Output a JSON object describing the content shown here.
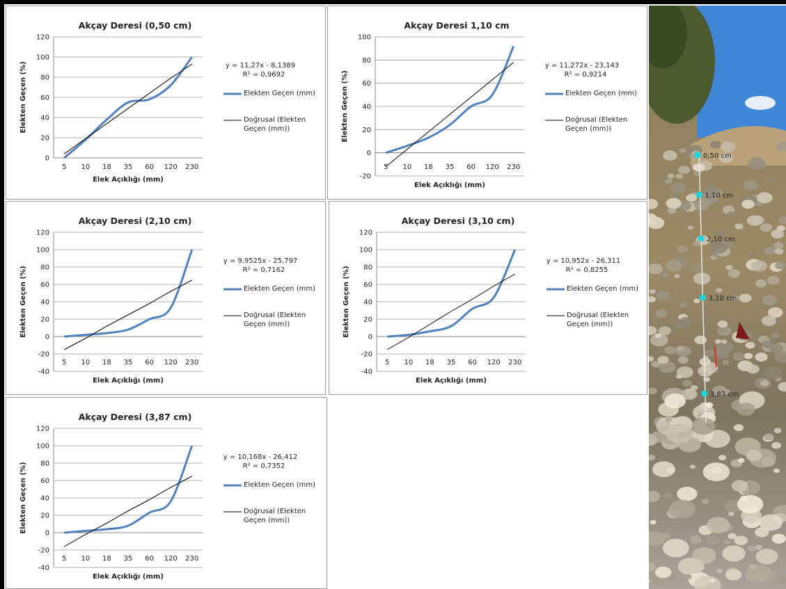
{
  "chart_data": [
    {
      "type": "line",
      "title": "Akçay Deresi (0,50 cm)",
      "x_label": "Elek Açıklığı  (mm)",
      "y_label": "Elekten Geçen (%)",
      "categories": [
        "5",
        "10",
        "18",
        "35",
        "60",
        "120",
        "230"
      ],
      "series": [
        {
          "name": "Elekten Geçen (mm)",
          "color": "#4f81bd",
          "values": [
            0,
            18,
            38,
            55,
            58,
            72,
            100
          ]
        },
        {
          "name": "Doğrusal (Elekten Geçen (mm))",
          "color": "#000000",
          "values": [
            4,
            19,
            34,
            49,
            64,
            79,
            93
          ]
        }
      ],
      "ylim": [
        0,
        120
      ],
      "yticks": [
        0,
        20,
        40,
        60,
        80,
        100,
        120
      ],
      "grid": true,
      "equation": "y = 11,27x - 8,1389",
      "r_squared": "R² = 0,9692"
    },
    {
      "type": "line",
      "title": "Akçay Deresi 1,10 cm",
      "x_label": "Elek Açıklığı  (mm)",
      "y_label": "Elekten Geçen (%)",
      "categories": [
        "5",
        "10",
        "18",
        "35",
        "60",
        "120",
        "230"
      ],
      "series": [
        {
          "name": "Elekten Geçen (mm)",
          "color": "#4f81bd",
          "values": [
            0,
            6,
            13,
            24,
            40,
            50,
            92
          ]
        },
        {
          "name": "Doğrusal (Elekten Geçen (mm))",
          "color": "#000000",
          "values": [
            -12,
            3,
            18,
            33,
            48,
            63,
            78
          ]
        }
      ],
      "ylim": [
        -20,
        100
      ],
      "yticks": [
        -20,
        0,
        20,
        40,
        60,
        80,
        100
      ],
      "grid": true,
      "equation": "y = 11,272x - 23,143",
      "r_squared": "R² = 0,9214"
    },
    {
      "type": "line",
      "title": "Akçay Deresi (2,10 cm)",
      "x_label": "Elek Açıklığı  (mm)",
      "y_label": "Elekten Geçen (%)",
      "categories": [
        "5",
        "10",
        "18",
        "35",
        "60",
        "120",
        "230"
      ],
      "series": [
        {
          "name": "Elekten Geçen (mm)",
          "color": "#4f81bd",
          "values": [
            0,
            2,
            4,
            8,
            20,
            33,
            100
          ]
        },
        {
          "name": "Doğrusal (Elekten Geçen (mm))",
          "color": "#000000",
          "values": [
            -15,
            -2,
            12,
            25,
            38,
            52,
            65
          ]
        }
      ],
      "ylim": [
        -40,
        120
      ],
      "yticks": [
        -40,
        -20,
        0,
        20,
        40,
        60,
        80,
        100,
        120
      ],
      "grid": true,
      "equation": "y = 9,9525x - 25,797",
      "r_squared": "R² = 0,7162"
    },
    {
      "type": "line",
      "title": "Akçay Deresi (3,10 cm)",
      "x_label": "Elek Açıklığı  (mm)",
      "y_label": "Elekten Geçen (%)",
      "categories": [
        "5",
        "10",
        "18",
        "35",
        "60",
        "120",
        "230"
      ],
      "series": [
        {
          "name": "Elekten Geçen (mm)",
          "color": "#4f81bd",
          "values": [
            0,
            2,
            6,
            12,
            32,
            45,
            100
          ]
        },
        {
          "name": "Doğrusal (Elekten Geçen (mm))",
          "color": "#000000",
          "values": [
            -15,
            -1,
            14,
            29,
            43,
            58,
            72
          ]
        }
      ],
      "ylim": [
        -40,
        120
      ],
      "yticks": [
        -40,
        -20,
        0,
        20,
        40,
        60,
        80,
        100,
        120
      ],
      "grid": true,
      "equation": "y = 10,952x - 26,311",
      "r_squared": "R² = 0,8255"
    },
    {
      "type": "line",
      "title": "Akçay Deresi (3,87 cm)",
      "x_label": "Elek Açıklığı  (mm)",
      "y_label": "Elekten Geçen (%)",
      "categories": [
        "5",
        "10",
        "18",
        "35",
        "60",
        "120",
        "230"
      ],
      "series": [
        {
          "name": "Elekten Geçen (mm)",
          "color": "#4f81bd",
          "values": [
            0,
            2,
            4,
            8,
            23,
            36,
            100
          ]
        },
        {
          "name": "Doğrusal (Elekten Geçen (mm))",
          "color": "#000000",
          "values": [
            -16,
            -2,
            11,
            25,
            38,
            52,
            65
          ]
        }
      ],
      "ylim": [
        -40,
        120
      ],
      "yticks": [
        -40,
        -20,
        0,
        20,
        40,
        60,
        80,
        100,
        120
      ],
      "grid": true,
      "equation": "y = 10,168x - 26,412",
      "r_squared": "R² = 0,7352"
    }
  ],
  "photo": {
    "labels": [
      "0,50 cm",
      "1,10 cm",
      "2,10 cm",
      "3,10 cm",
      "3,87 cm"
    ]
  }
}
